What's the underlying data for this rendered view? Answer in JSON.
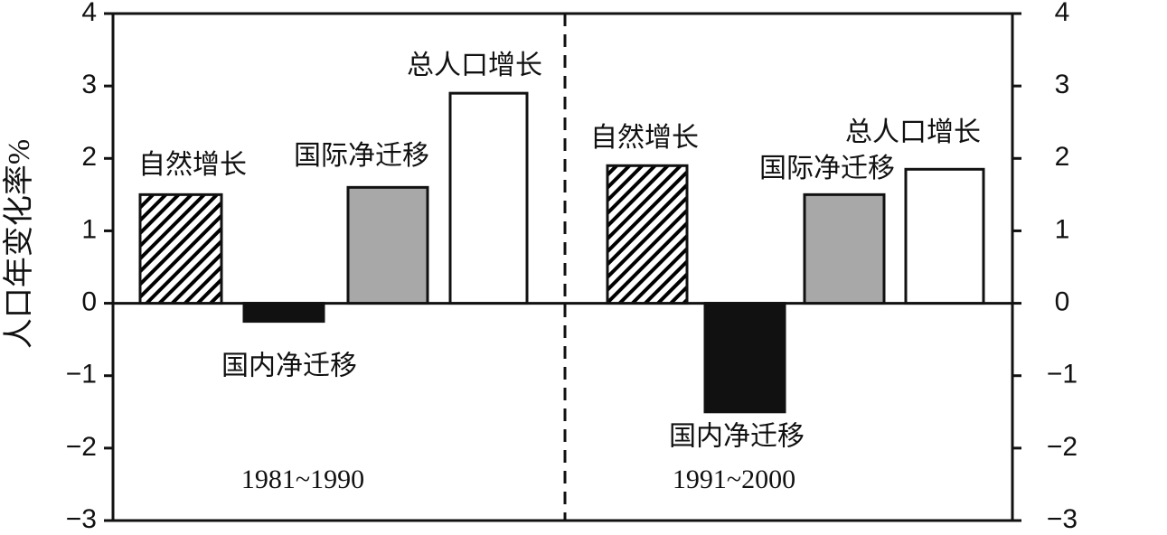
{
  "chart_data": {
    "type": "bar",
    "ylabel": "人口年变化率%",
    "categories": [
      "1981~1990",
      "1991~2000"
    ],
    "series": [
      {
        "name": "自然增长",
        "color": "#000000",
        "pattern": "hatch",
        "values": [
          1.5,
          1.9
        ]
      },
      {
        "name": "国内净迁移",
        "color": "#111111",
        "pattern": "solid",
        "values": [
          -0.25,
          -1.5
        ]
      },
      {
        "name": "国际净迁移",
        "color": "#a8a8a8",
        "pattern": "solid",
        "values": [
          1.6,
          1.5
        ]
      },
      {
        "name": "总人口增长",
        "color": "#ffffff",
        "pattern": "solid",
        "values": [
          2.9,
          1.85
        ]
      }
    ],
    "ylim": [
      -3,
      4
    ],
    "yticks": [
      {
        "value": -3,
        "label": "−3"
      },
      {
        "value": -2,
        "label": "−2"
      },
      {
        "value": -1,
        "label": "−1"
      },
      0,
      1,
      2,
      3,
      4
    ],
    "y2lim": [
      -3,
      4
    ],
    "y2ticks": [
      {
        "value": -3,
        "label": "−3"
      },
      {
        "value": -2,
        "label": "−2"
      },
      {
        "value": -1,
        "label": "−1"
      },
      0,
      1,
      2,
      3,
      4
    ]
  }
}
